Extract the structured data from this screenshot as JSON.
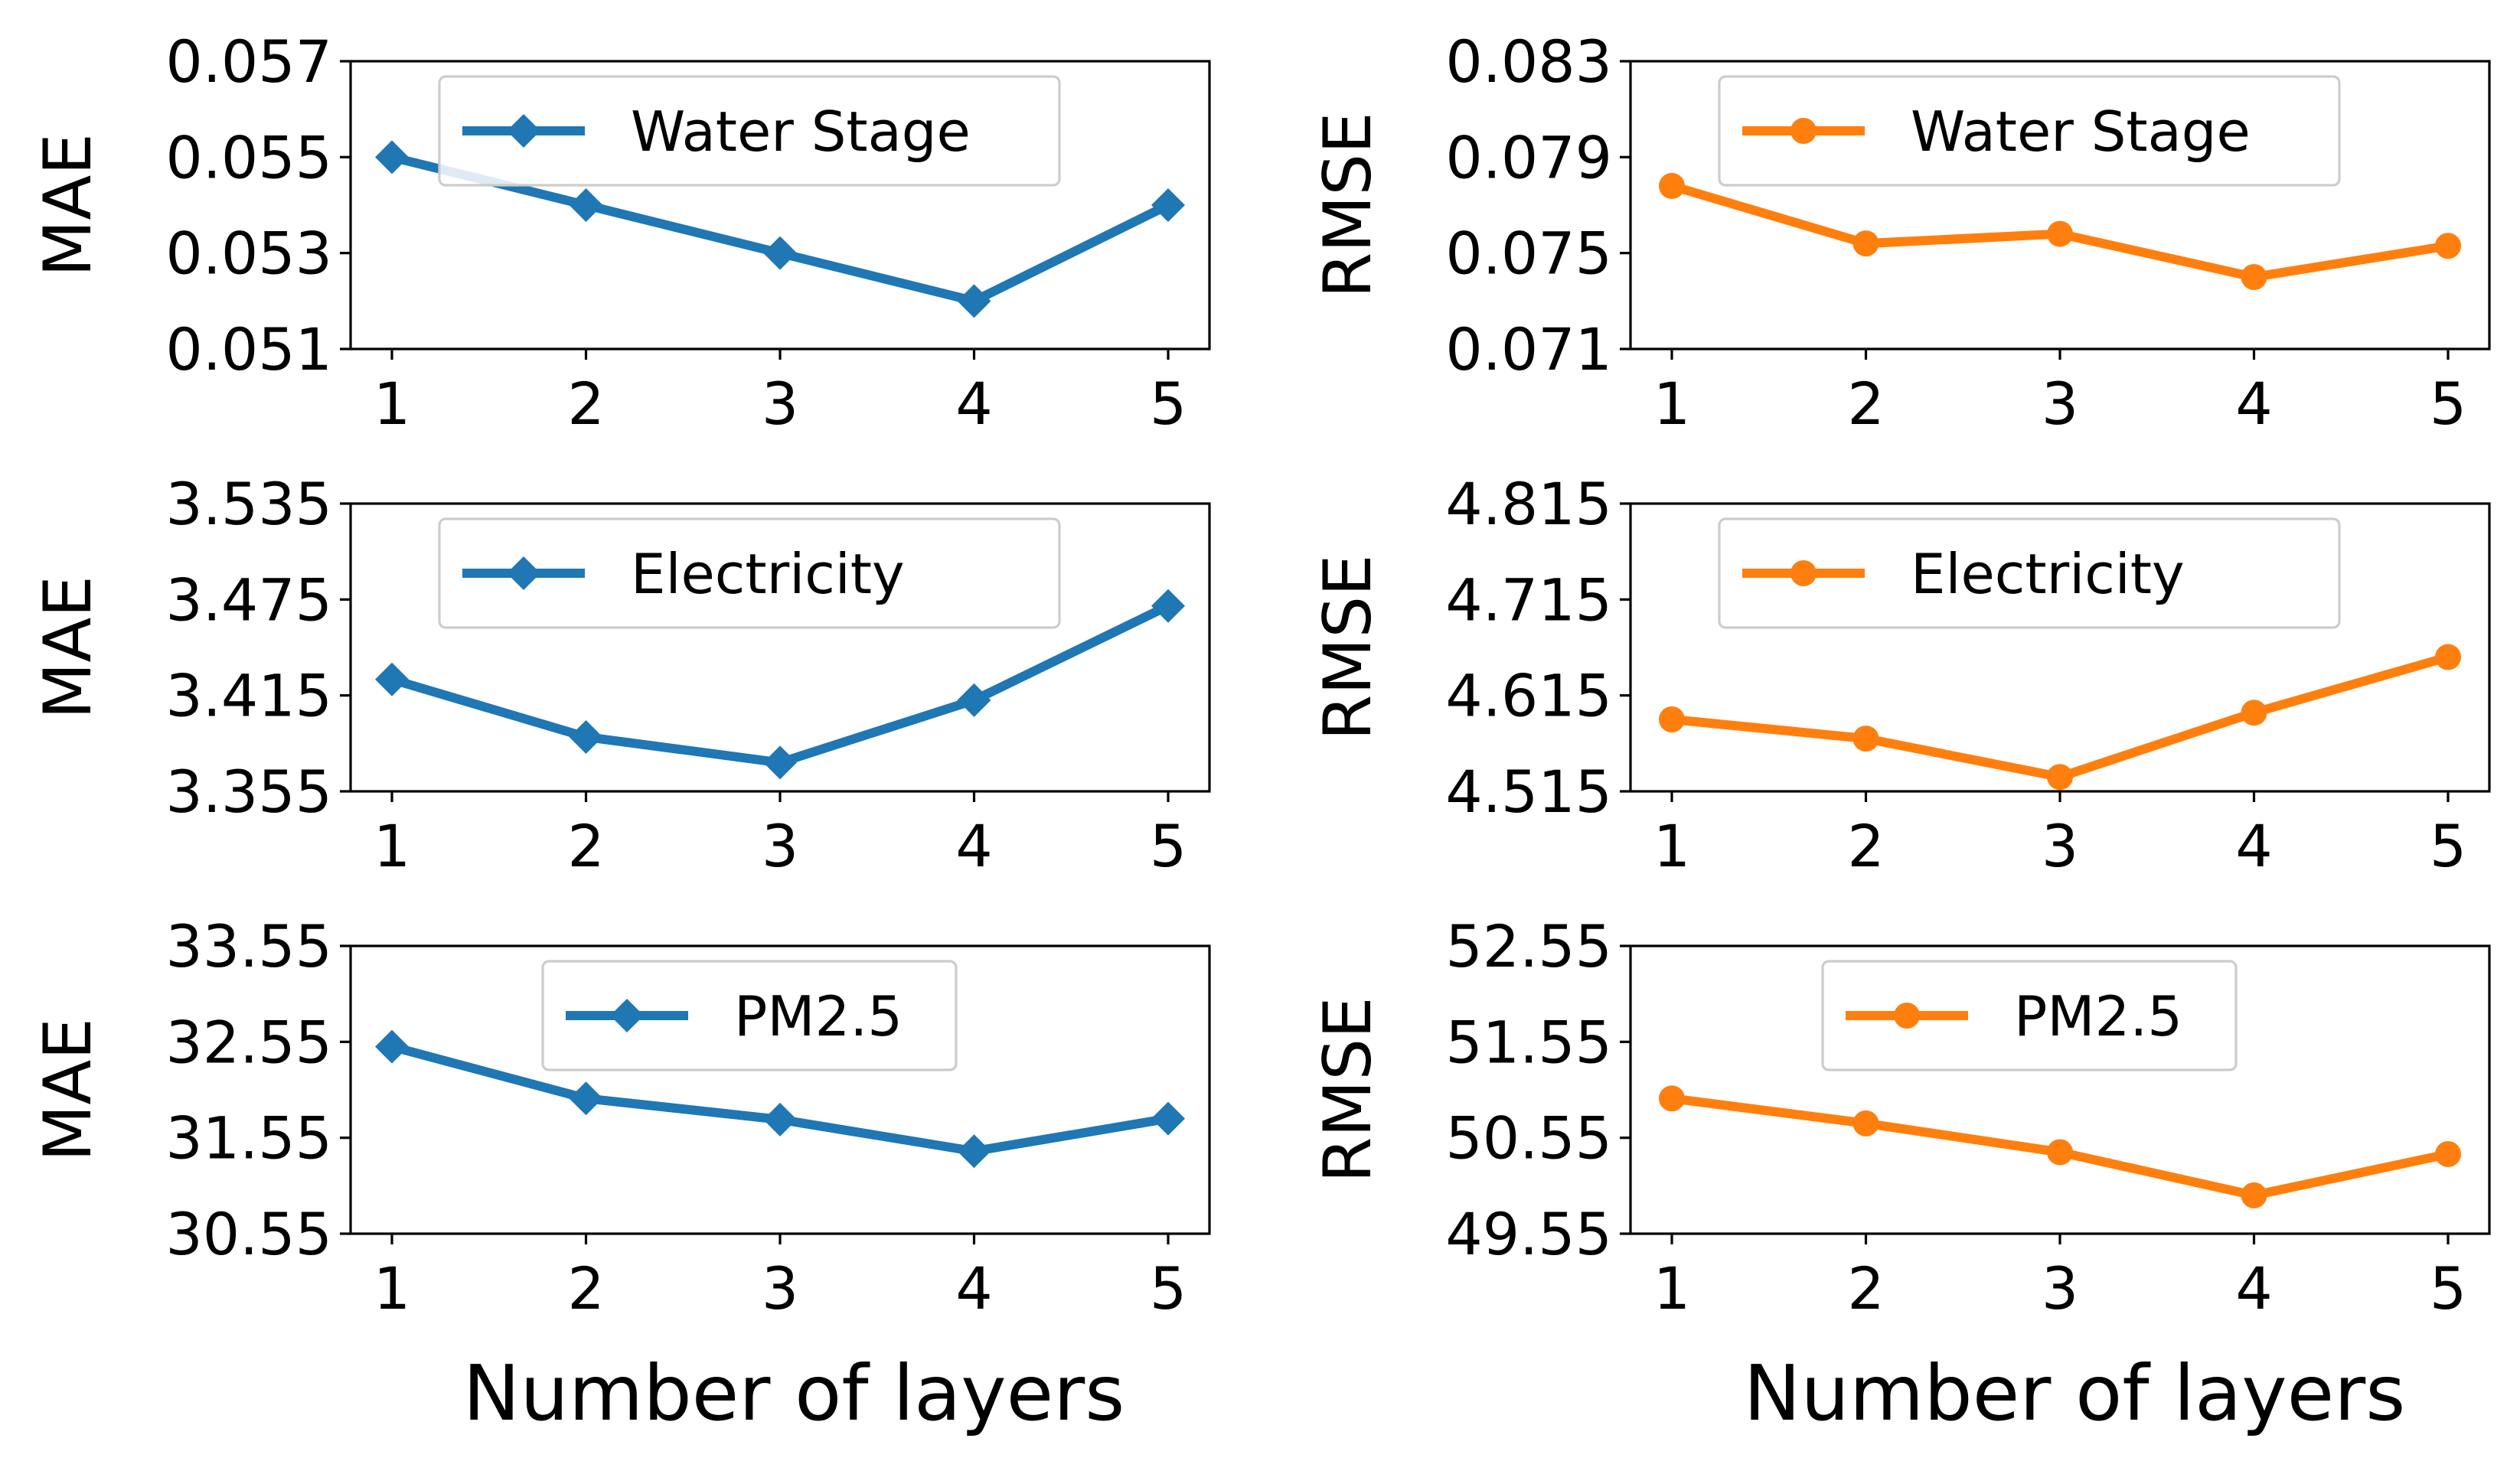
{
  "x_axis_label": "Number of layers",
  "chart_data": [
    {
      "type": "line",
      "metric": "MAE",
      "dataset": "Water Stage",
      "legend": "Water Stage",
      "ylabel": "MAE",
      "color": "#1f77b4",
      "marker": "diamond",
      "x": [
        1,
        2,
        3,
        4,
        5
      ],
      "values": [
        0.055,
        0.054,
        0.053,
        0.052,
        0.054
      ],
      "ylim": [
        0.051,
        0.057
      ],
      "yticks": [
        "0.051",
        "0.053",
        "0.055",
        "0.057"
      ],
      "xticks": [
        "1",
        "2",
        "3",
        "4",
        "5"
      ],
      "legend_position": "upper-center"
    },
    {
      "type": "line",
      "metric": "RMSE",
      "dataset": "Water Stage",
      "legend": "Water Stage",
      "ylabel": "RMSE",
      "color": "#ff7f0e",
      "marker": "circle",
      "x": [
        1,
        2,
        3,
        4,
        5
      ],
      "values": [
        0.0778,
        0.0754,
        0.0758,
        0.074,
        0.0753
      ],
      "ylim": [
        0.071,
        0.083
      ],
      "yticks": [
        "0.071",
        "0.075",
        "0.079",
        "0.083"
      ],
      "xticks": [
        "1",
        "2",
        "3",
        "4",
        "5"
      ],
      "legend_position": "upper-center"
    },
    {
      "type": "line",
      "metric": "MAE",
      "dataset": "Electricity",
      "legend": "Electricity",
      "ylabel": "MAE",
      "color": "#1f77b4",
      "marker": "diamond",
      "x": [
        1,
        2,
        3,
        4,
        5
      ],
      "values": [
        3.425,
        3.389,
        3.373,
        3.412,
        3.471
      ],
      "ylim": [
        3.355,
        3.535
      ],
      "yticks": [
        "3.355",
        "3.415",
        "3.475",
        "3.535"
      ],
      "xticks": [
        "1",
        "2",
        "3",
        "4",
        "5"
      ],
      "legend_position": "upper-center"
    },
    {
      "type": "line",
      "metric": "RMSE",
      "dataset": "Electricity",
      "legend": "Electricity",
      "ylabel": "RMSE",
      "color": "#ff7f0e",
      "marker": "circle",
      "x": [
        1,
        2,
        3,
        4,
        5
      ],
      "values": [
        4.59,
        4.57,
        4.53,
        4.597,
        4.655
      ],
      "ylim": [
        4.515,
        4.815
      ],
      "yticks": [
        "4.515",
        "4.615",
        "4.715",
        "4.815"
      ],
      "xticks": [
        "1",
        "2",
        "3",
        "4",
        "5"
      ],
      "legend_position": "upper-center"
    },
    {
      "type": "line",
      "metric": "MAE",
      "dataset": "PM2.5",
      "legend": "PM2.5",
      "ylabel": "MAE",
      "color": "#1f77b4",
      "marker": "diamond",
      "x": [
        1,
        2,
        3,
        4,
        5
      ],
      "values": [
        32.5,
        31.96,
        31.74,
        31.41,
        31.75
      ],
      "ylim": [
        30.55,
        33.55
      ],
      "yticks": [
        "30.55",
        "31.55",
        "32.55",
        "33.55"
      ],
      "xticks": [
        "1",
        "2",
        "3",
        "4",
        "5"
      ],
      "legend_position": "upper-center"
    },
    {
      "type": "line",
      "metric": "RMSE",
      "dataset": "PM2.5",
      "legend": "PM2.5",
      "ylabel": "RMSE",
      "color": "#ff7f0e",
      "marker": "circle",
      "x": [
        1,
        2,
        3,
        4,
        5
      ],
      "values": [
        50.96,
        50.7,
        50.4,
        49.95,
        50.38
      ],
      "ylim": [
        49.55,
        52.55
      ],
      "yticks": [
        "49.55",
        "50.55",
        "51.55",
        "52.55"
      ],
      "xticks": [
        "1",
        "2",
        "3",
        "4",
        "5"
      ],
      "legend_position": "upper-center"
    }
  ]
}
